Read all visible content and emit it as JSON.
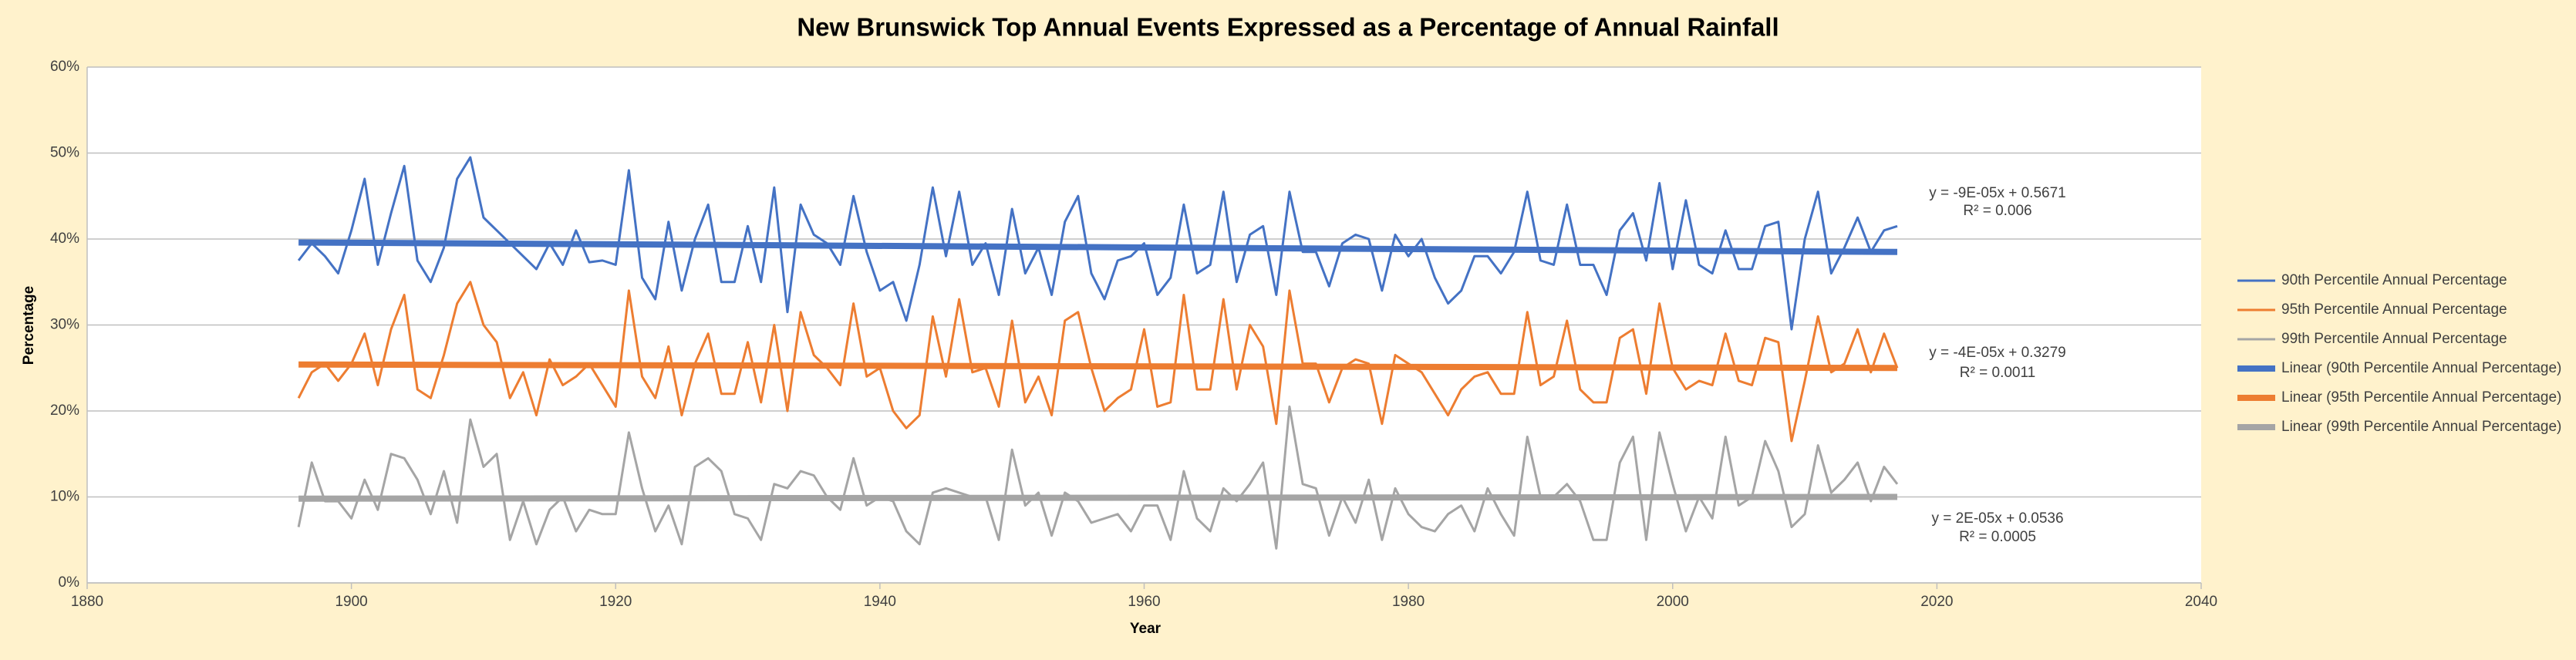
{
  "chart_data": {
    "type": "line",
    "title": "New Brunswick Top Annual Events Expressed as a Percentage of Annual Rainfall",
    "x_label": "Year",
    "y_label": "Percentage",
    "x": [
      1896,
      1897,
      1898,
      1899,
      1900,
      1901,
      1902,
      1903,
      1904,
      1905,
      1906,
      1907,
      1908,
      1909,
      1910,
      1911,
      1912,
      1913,
      1914,
      1915,
      1916,
      1917,
      1918,
      1919,
      1920,
      1921,
      1922,
      1923,
      1924,
      1925,
      1926,
      1927,
      1928,
      1929,
      1930,
      1931,
      1932,
      1933,
      1934,
      1935,
      1936,
      1937,
      1938,
      1939,
      1940,
      1941,
      1942,
      1943,
      1944,
      1945,
      1946,
      1947,
      1948,
      1949,
      1950,
      1951,
      1952,
      1953,
      1954,
      1955,
      1956,
      1957,
      1958,
      1959,
      1960,
      1961,
      1962,
      1963,
      1964,
      1965,
      1966,
      1967,
      1968,
      1969,
      1970,
      1971,
      1972,
      1973,
      1974,
      1975,
      1976,
      1977,
      1978,
      1979,
      1980,
      1981,
      1982,
      1983,
      1984,
      1985,
      1986,
      1987,
      1988,
      1989,
      1990,
      1991,
      1992,
      1993,
      1994,
      1995,
      1996,
      1997,
      1998,
      1999,
      2000,
      2001,
      2002,
      2003,
      2004,
      2005,
      2006,
      2007,
      2008,
      2009,
      2010,
      2011,
      2012,
      2013,
      2014,
      2015,
      2016,
      2017
    ],
    "xlim": [
      1880,
      2040
    ],
    "xticks": [
      1880,
      1900,
      1920,
      1940,
      1960,
      1980,
      2000,
      2020,
      2040
    ],
    "ylim": [
      0,
      60
    ],
    "yticks": [
      {
        "value": 0,
        "label": "0%"
      },
      {
        "value": 10,
        "label": "10%"
      },
      {
        "value": 20,
        "label": "20%"
      },
      {
        "value": 30,
        "label": "30%"
      },
      {
        "value": 40,
        "label": "40%"
      },
      {
        "value": 50,
        "label": "50%"
      },
      {
        "value": 60,
        "label": "60%"
      }
    ],
    "grid": true,
    "legend": "right",
    "series": [
      {
        "name": "90th Percentile Annual Percentage",
        "color": "#4472c4",
        "values": [
          37.5,
          39.5,
          38,
          36,
          41,
          47,
          37,
          43,
          48.5,
          37.5,
          35,
          39,
          47,
          49.5,
          42.5,
          41,
          39.5,
          38,
          36.5,
          39.5,
          37,
          41,
          37.3,
          37.5,
          37,
          48,
          35.5,
          33,
          42,
          34,
          40,
          44,
          35,
          35,
          41.5,
          35,
          46,
          31.5,
          44,
          40.5,
          39.5,
          37,
          45,
          38.5,
          34,
          35,
          30.5,
          37,
          46,
          38,
          45.5,
          37,
          39.5,
          33.5,
          43.5,
          36,
          39,
          33.5,
          42,
          45,
          36,
          33,
          37.5,
          38,
          39.5,
          33.5,
          35.5,
          44,
          36,
          37,
          45.5,
          35,
          40.5,
          41.5,
          33.5,
          45.5,
          38.5,
          38.5,
          34.5,
          39.5,
          40.5,
          40,
          34,
          40.5,
          38,
          40,
          35.5,
          32.5,
          34,
          38,
          38,
          36,
          38.5,
          45.5,
          37.5,
          37,
          44,
          37,
          37,
          33.5,
          41,
          43,
          37.5,
          46.5,
          36.5,
          44.5,
          37,
          36,
          41,
          36.5,
          36.5,
          41.5,
          42,
          29.5,
          40,
          45.5,
          36,
          39,
          42.5,
          38.5,
          41,
          41.5
        ]
      },
      {
        "name": "95th Percentile Annual Percentage",
        "color": "#ed7d31",
        "values": [
          21.5,
          24.5,
          25.5,
          23.5,
          25.5,
          29,
          23,
          29.5,
          33.5,
          22.5,
          21.5,
          26.5,
          32.5,
          35,
          30,
          28,
          21.5,
          24.5,
          19.5,
          26,
          23,
          24,
          25.5,
          23,
          20.5,
          34,
          24,
          21.5,
          27.5,
          19.5,
          25.5,
          29,
          22,
          22,
          28,
          21,
          30,
          20,
          31.5,
          26.5,
          25,
          23,
          32.5,
          24,
          25,
          20,
          18,
          19.5,
          31,
          24,
          33,
          24.5,
          25,
          20.5,
          30.5,
          21,
          24,
          19.5,
          30.5,
          31.5,
          25,
          20,
          21.5,
          22.5,
          29.5,
          20.5,
          21,
          33.5,
          22.5,
          22.5,
          33,
          22.5,
          30,
          27.5,
          18.5,
          34,
          25.5,
          25.5,
          21,
          25,
          26,
          25.5,
          18.5,
          26.5,
          25.5,
          24.5,
          22,
          19.5,
          22.5,
          24,
          24.5,
          22,
          22,
          31.5,
          23,
          24,
          30.5,
          22.5,
          21,
          21,
          28.5,
          29.5,
          22,
          32.5,
          25,
          22.5,
          23.5,
          23,
          29,
          23.5,
          23,
          28.5,
          28,
          16.5,
          23.5,
          31,
          24.5,
          25.5,
          29.5,
          24.5,
          29,
          25
        ]
      },
      {
        "name": "99th Percentile Annual Percentage",
        "color": "#a5a5a5",
        "values": [
          6.5,
          14,
          9.5,
          9.5,
          7.5,
          12,
          8.5,
          15,
          14.5,
          12,
          8,
          13,
          7,
          19,
          13.5,
          15,
          5,
          9.5,
          4.5,
          8.5,
          10,
          6,
          8.5,
          8,
          8,
          17.5,
          11,
          6,
          9,
          4.5,
          13.5,
          14.5,
          13,
          8,
          7.5,
          5,
          11.5,
          11,
          13,
          12.5,
          10,
          8.5,
          14.5,
          9,
          10,
          9.5,
          6,
          4.5,
          10.5,
          11,
          10.5,
          10,
          10,
          5,
          15.5,
          9,
          10.5,
          5.5,
          10.5,
          9.5,
          7,
          7.5,
          8,
          6,
          9,
          9,
          5,
          13,
          7.5,
          6,
          11,
          9.5,
          11.5,
          14,
          4,
          20.5,
          11.5,
          11,
          5.5,
          10,
          7,
          12,
          5,
          11,
          8,
          6.5,
          6,
          8,
          9,
          6,
          11,
          8,
          5.5,
          17,
          10,
          10,
          11.5,
          9.5,
          5,
          5,
          14,
          17,
          5,
          17.5,
          11.5,
          6,
          10,
          7.5,
          17,
          9,
          10,
          16.5,
          13,
          6.5,
          8,
          16,
          10.5,
          12,
          14,
          9.5,
          13.5,
          11.5
        ]
      },
      {
        "name": "Linear (90th Percentile Annual Percentage)",
        "color": "#4472c4",
        "x": [
          1896,
          2017
        ],
        "values": [
          39.6,
          38.5
        ]
      },
      {
        "name": "Linear (95th Percentile Annual Percentage)",
        "color": "#ed7d31",
        "x": [
          1896,
          2017
        ],
        "values": [
          25.4,
          25.0
        ]
      },
      {
        "name": "Linear (99th Percentile Annual Percentage)",
        "color": "#a5a5a5",
        "x": [
          1896,
          2017
        ],
        "values": [
          9.8,
          10.0
        ]
      }
    ],
    "annotations": [
      "y = -9E-05x + 0.5671",
      "R² = 0.006",
      "y = -4E-05x + 0.3279",
      "R² = 0.0011",
      "y = 2E-05x + 0.0536",
      "R² = 0.0005"
    ]
  }
}
